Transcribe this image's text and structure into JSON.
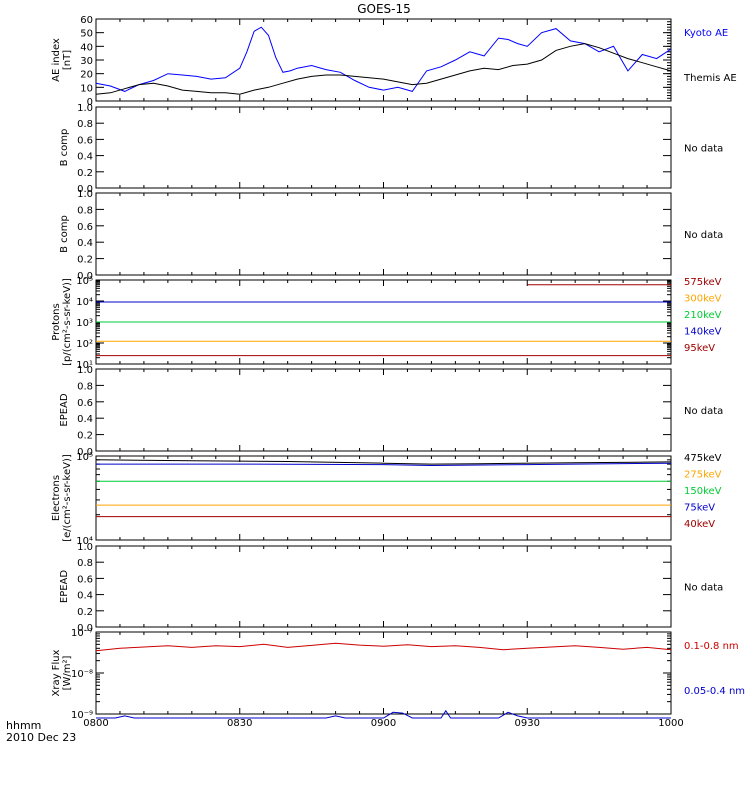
{
  "chart_data": {
    "type": "line",
    "title": "GOES-15",
    "x": {
      "unit_label": "hhmm",
      "date_label": "2010 Dec 23",
      "ticks": [
        "0800",
        "0830",
        "0900",
        "0930",
        "1000"
      ],
      "range_minutes": [
        0,
        120
      ]
    },
    "panels": [
      {
        "key": "ae",
        "ylabel": [
          "AE index",
          "[nT]"
        ],
        "scale": "linear",
        "ylim": [
          0,
          60
        ],
        "yticks": [
          0,
          10,
          20,
          30,
          40,
          50,
          60
        ],
        "series": [
          {
            "name": "Kyoto AE",
            "color": "#0000ff",
            "x": [
              0,
              3,
              6,
              9,
              12,
              15,
              18,
              21,
              24,
              27,
              30,
              31.5,
              33,
              34.5,
              36,
              37.5,
              39,
              40.5,
              42,
              45,
              48,
              51,
              54,
              57,
              60,
              63,
              66,
              69,
              72,
              75,
              78,
              81,
              84,
              86,
              88,
              90,
              93,
              96,
              99,
              102,
              105,
              108,
              111,
              114,
              117,
              120
            ],
            "y": [
              13,
              11,
              7,
              12,
              15,
              20,
              19,
              18,
              16,
              17,
              24,
              36,
              51,
              54,
              48,
              32,
              21,
              22,
              24,
              26,
              23,
              21,
              15,
              10,
              8,
              10,
              7,
              22,
              25,
              30,
              36,
              33,
              46,
              45,
              42,
              40,
              50,
              53,
              44,
              42,
              36,
              40,
              22,
              34,
              31,
              38
            ]
          },
          {
            "name": "Themis AE",
            "color": "#000000",
            "x": [
              0,
              3,
              6,
              9,
              12,
              15,
              18,
              21,
              24,
              27,
              30,
              33,
              36,
              39,
              42,
              45,
              48,
              51,
              54,
              57,
              60,
              63,
              66,
              69,
              72,
              75,
              78,
              81,
              84,
              87,
              90,
              93,
              96,
              99,
              102,
              105,
              108,
              111,
              114,
              117,
              120
            ],
            "y": [
              5,
              6,
              9,
              12,
              13,
              11,
              8,
              7,
              6,
              6,
              5,
              8,
              10,
              13,
              16,
              18,
              19,
              19,
              18,
              17,
              16,
              14,
              12,
              13,
              16,
              19,
              22,
              24,
              23,
              26,
              27,
              30,
              37,
              40,
              42,
              39,
              35,
              31,
              28,
              25,
              22
            ]
          }
        ],
        "legend": [
          "Kyoto AE",
          "Themis AE"
        ]
      },
      {
        "key": "b1",
        "ylabel": [
          "B comp"
        ],
        "scale": "linear",
        "ylim": [
          0,
          1
        ],
        "yticks": [
          0.0,
          0.2,
          0.4,
          0.6,
          0.8,
          1.0
        ],
        "no_data": "No data"
      },
      {
        "key": "b2",
        "ylabel": [
          "B comp"
        ],
        "scale": "linear",
        "ylim": [
          0,
          1
        ],
        "yticks": [
          0.0,
          0.2,
          0.4,
          0.6,
          0.8,
          1.0
        ],
        "no_data": "No data"
      },
      {
        "key": "protons",
        "ylabel": [
          "Protons",
          "[p/(cm²-s-sr-keV)]"
        ],
        "scale": "log",
        "ylim_exp": [
          1,
          5
        ],
        "ytick_exps": [
          1,
          2,
          3,
          4,
          5
        ],
        "series": [
          {
            "name": "575keV",
            "color": "#a00000",
            "x": [
              90,
              120
            ],
            "y": [
              60000,
              60000
            ]
          },
          {
            "name": "300keV",
            "color": "#ffa500",
            "x": [
              0,
              120
            ],
            "y": [
              120,
              120
            ]
          },
          {
            "name": "210keV",
            "color": "#00cc33",
            "x": [
              0,
              120
            ],
            "y": [
              1000,
              1000
            ]
          },
          {
            "name": "140keV",
            "color": "#0000cc",
            "x": [
              0,
              120
            ],
            "y": [
              9000,
              9000
            ]
          },
          {
            "name": "95keV",
            "color": "#a00000",
            "x": [
              0,
              120
            ],
            "y": [
              25,
              25
            ]
          }
        ],
        "legend": [
          "575keV",
          "300keV",
          "210keV",
          "140keV",
          "95keV"
        ]
      },
      {
        "key": "epead1",
        "ylabel": [
          "EPEAD"
        ],
        "scale": "linear",
        "ylim": [
          0,
          1
        ],
        "yticks": [
          0.0,
          0.2,
          0.4,
          0.6,
          0.8,
          1.0
        ],
        "no_data": "No data"
      },
      {
        "key": "electrons",
        "ylabel": [
          "Electrons",
          "[e/(cm²-s-sr-keV)]"
        ],
        "scale": "log",
        "ylim_exp": [
          4,
          5
        ],
        "ytick_exps": [
          4,
          5
        ],
        "series": [
          {
            "name": "475keV",
            "color": "#000000",
            "x": [
              0,
              20,
              40,
              60,
              70,
              80,
              100,
              120
            ],
            "y": [
              90000,
              88000,
              86000,
              82000,
              80000,
              81000,
              83000,
              85000
            ]
          },
          {
            "name": "275keV",
            "color": "#ffa500",
            "x": [
              0,
              120
            ],
            "y": [
              26000,
              26000
            ]
          },
          {
            "name": "150keV",
            "color": "#00cc33",
            "x": [
              0,
              120
            ],
            "y": [
              50000,
              50000
            ]
          },
          {
            "name": "75keV",
            "color": "#0000cc",
            "x": [
              0,
              30,
              60,
              70,
              90,
              120
            ],
            "y": [
              80000,
              80000,
              79000,
              77000,
              79000,
              82000
            ]
          },
          {
            "name": "40keV",
            "color": "#a00000",
            "x": [
              0,
              120
            ],
            "y": [
              19000,
              19000
            ]
          }
        ],
        "legend": [
          "475keV",
          "275keV",
          "150keV",
          "75keV",
          "40keV"
        ]
      },
      {
        "key": "epead2",
        "ylabel": [
          "EPEAD"
        ],
        "scale": "linear",
        "ylim": [
          0,
          1
        ],
        "yticks": [
          0.0,
          0.2,
          0.4,
          0.6,
          0.8,
          1.0
        ],
        "no_data": "No data"
      },
      {
        "key": "xray",
        "ylabel": [
          "Xray Flux",
          "[W/m²]"
        ],
        "scale": "log",
        "ylim_exp": [
          -9,
          -7
        ],
        "ytick_exps": [
          -9,
          -8,
          -7
        ],
        "series": [
          {
            "name": "0.1-0.8 nm",
            "color": "#cc0000",
            "x": [
              0,
              5,
              10,
              15,
              20,
              25,
              30,
              35,
              40,
              45,
              50,
              55,
              60,
              65,
              70,
              75,
              80,
              85,
              90,
              95,
              100,
              105,
              110,
              115,
              120
            ],
            "y": [
              3.5e-08,
              4e-08,
              4.3e-08,
              4.6e-08,
              4.2e-08,
              4.6e-08,
              4.4e-08,
              5e-08,
              4.2e-08,
              4.7e-08,
              5.3e-08,
              4.8e-08,
              4.5e-08,
              4.9e-08,
              4.4e-08,
              4.6e-08,
              4.2e-08,
              3.7e-08,
              4e-08,
              4.3e-08,
              4.6e-08,
              4.2e-08,
              3.8e-08,
              4.2e-08,
              3.7e-08
            ]
          },
          {
            "name": "0.05-0.4 nm",
            "color": "#0000cc",
            "x": [
              0,
              4,
              6,
              8,
              40,
              48,
              50,
              52,
              56,
              60,
              62,
              64,
              66,
              70,
              72,
              73,
              74,
              76,
              84,
              86,
              88,
              90,
              92,
              120
            ],
            "y": [
              8e-10,
              8e-10,
              9e-10,
              8e-10,
              8e-10,
              8e-10,
              9e-10,
              8e-10,
              8e-10,
              8e-10,
              1.1e-09,
              1.05e-09,
              8e-10,
              8e-10,
              8e-10,
              1.2e-09,
              8e-10,
              8e-10,
              8e-10,
              1.1e-09,
              9e-10,
              8e-10,
              8e-10,
              8e-10
            ]
          }
        ],
        "legend": [
          "0.1-0.8 nm",
          "0.05-0.4 nm"
        ]
      }
    ]
  }
}
